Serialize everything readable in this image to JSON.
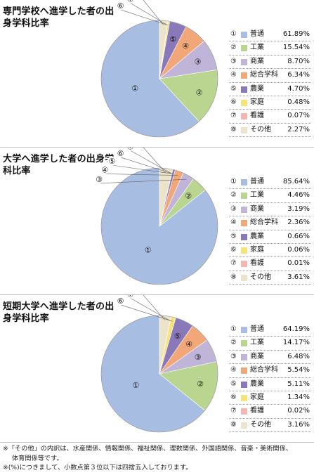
{
  "chart_data": [
    {
      "type": "pie",
      "title": "専門学校へ進学した者の出身学科比率",
      "categories": [
        "普通",
        "工業",
        "商業",
        "総合学科",
        "農業",
        "家庭",
        "看護",
        "その他"
      ],
      "markers": [
        "①",
        "②",
        "③",
        "④",
        "⑤",
        "⑥",
        "⑦",
        "⑧"
      ],
      "values": [
        61.89,
        15.54,
        8.7,
        6.34,
        4.7,
        0.48,
        0.07,
        2.27
      ],
      "value_labels": [
        "61.89%",
        "15.54%",
        "8.70%",
        "6.34%",
        "4.70%",
        "0.48%",
        "0.07%",
        "2.27%"
      ]
    },
    {
      "type": "pie",
      "title": "大学へ進学した者の出身学科比率",
      "categories": [
        "普通",
        "工業",
        "商業",
        "総合学科",
        "農業",
        "家庭",
        "看護",
        "その他"
      ],
      "markers": [
        "①",
        "②",
        "③",
        "④",
        "⑤",
        "⑥",
        "⑦",
        "⑧"
      ],
      "values": [
        85.64,
        4.46,
        3.19,
        2.36,
        0.66,
        0.06,
        0.01,
        3.61
      ],
      "value_labels": [
        "85.64%",
        "4.46%",
        "3.19%",
        "2.36%",
        "0.66%",
        "0.06%",
        "0.01%",
        "3.61%"
      ]
    },
    {
      "type": "pie",
      "title": "短期大学へ進学した者の出身学科比率",
      "categories": [
        "普通",
        "工業",
        "商業",
        "総合学科",
        "農業",
        "家庭",
        "看護",
        "その他"
      ],
      "markers": [
        "①",
        "②",
        "③",
        "④",
        "⑤",
        "⑥",
        "⑦",
        "⑧"
      ],
      "values": [
        64.19,
        14.17,
        6.48,
        5.54,
        5.11,
        1.34,
        0.02,
        3.16
      ],
      "value_labels": [
        "64.19%",
        "14.17%",
        "6.48%",
        "5.54%",
        "5.11%",
        "1.34%",
        "0.02%",
        "3.16%"
      ]
    }
  ],
  "colors": [
    "#a8bde2",
    "#b9d58f",
    "#c0b4d8",
    "#f2a778",
    "#8a79b8",
    "#f8e27a",
    "#f2b8b0",
    "#ece3cb"
  ],
  "footnotes": [
    "※「その他」の内訳は、水産関係、情報関係、福祉関係、理数関係、外国語関係、音楽・美術関係、",
    "体育関係等です。",
    "※(%)につきまして、小数点第３位以下は四捨五入しております。"
  ]
}
